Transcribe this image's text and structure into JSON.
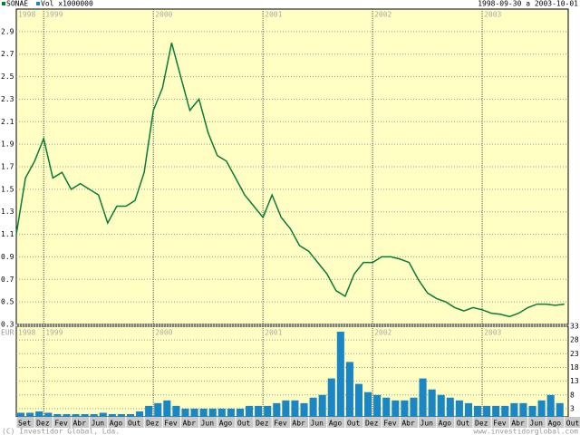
{
  "chart_data": [
    {
      "type": "line",
      "title": "SONAE",
      "date_range": "1998-09-30 a 2003-10-01",
      "color": "#0a7a3a",
      "grid": true,
      "years": [
        "1998",
        "1999",
        "2000",
        "2001",
        "2002",
        "2003"
      ],
      "categories": [
        "Set",
        null,
        null,
        "Dez",
        null,
        "Fev",
        null,
        "Abr",
        null,
        "Jun",
        null,
        "Ago",
        null,
        "Out",
        null,
        "Dez",
        null,
        "Fev",
        null,
        "Abr",
        null,
        "Jun",
        null,
        "Ago",
        null,
        "Out",
        null,
        "Dez",
        null,
        "Fev",
        null,
        "Abr",
        null,
        "Jun",
        null,
        "Ago",
        null,
        "Out",
        null,
        "Dez",
        null,
        "Fev",
        null,
        "Abr",
        null,
        "Jun",
        null,
        "Ago",
        null,
        "Out",
        null,
        "Dez",
        null,
        "Fev",
        null,
        "Abr",
        null,
        "Jun",
        null,
        "Ago",
        null,
        "Out"
      ],
      "values": [
        1.1,
        1.6,
        1.75,
        1.95,
        1.6,
        1.65,
        1.5,
        1.55,
        1.5,
        1.45,
        1.2,
        1.35,
        1.35,
        1.4,
        1.65,
        2.2,
        2.4,
        2.8,
        2.5,
        2.2,
        2.3,
        2.0,
        1.8,
        1.75,
        1.6,
        1.45,
        1.35,
        1.25,
        1.45,
        1.25,
        1.15,
        1.0,
        0.95,
        0.85,
        0.75,
        0.6,
        0.55,
        0.75,
        0.85,
        0.85,
        0.9,
        0.9,
        0.88,
        0.85,
        0.7,
        0.58,
        0.53,
        0.5,
        0.45,
        0.42,
        0.45,
        0.43,
        0.4,
        0.39,
        0.37,
        0.4,
        0.45,
        0.48,
        0.48,
        0.47,
        0.48,
        null
      ],
      "ylim": [
        0.3,
        3.1
      ],
      "yticks": [
        0.3,
        0.5,
        0.7,
        0.9,
        1.1,
        1.3,
        1.5,
        1.7,
        1.9,
        2.1,
        2.3,
        2.5,
        2.7,
        2.9
      ]
    },
    {
      "type": "bar",
      "title": "Vol x1000000",
      "unit": "EUR",
      "color": "#1a86c4",
      "grid": true,
      "values": [
        1,
        1.5,
        1.5,
        2,
        1.5,
        1,
        1,
        1,
        1,
        1,
        1.5,
        1,
        1,
        1,
        2,
        4,
        5,
        6,
        4,
        3,
        3,
        3,
        3,
        3,
        3,
        3,
        4,
        4,
        4,
        5,
        6,
        6,
        5,
        7,
        8,
        14,
        31,
        20,
        12,
        9,
        8,
        7,
        6,
        6,
        7,
        14,
        10,
        8,
        7,
        6,
        5,
        4,
        4,
        4,
        4,
        5,
        5,
        4,
        6,
        8,
        5,
        null
      ],
      "ylim": [
        0,
        33
      ],
      "yticks": [
        3,
        8,
        13,
        18,
        23,
        28,
        33
      ]
    }
  ],
  "footer": {
    "copyright": "(C) Investidor Global, Lda.",
    "site": "www.investidorglobal.com"
  }
}
